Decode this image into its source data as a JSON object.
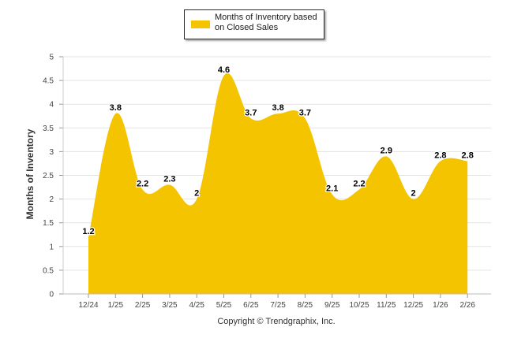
{
  "chart_data": {
    "type": "area",
    "legend": {
      "label": "Months of Inventory based\non Closed Sales",
      "position": "top-center"
    },
    "categories": [
      "12/24",
      "1/25",
      "2/25",
      "3/25",
      "4/25",
      "5/25",
      "6/25",
      "7/25",
      "8/25",
      "9/25",
      "10/25",
      "11/25",
      "12/25",
      "1/26",
      "2/26"
    ],
    "values": [
      1.2,
      3.8,
      2.2,
      2.3,
      2,
      4.6,
      3.7,
      3.8,
      3.7,
      2.1,
      2.2,
      2.9,
      2,
      2.8,
      2.8
    ],
    "data_labels": [
      "1.2",
      "3.8",
      "2.2",
      "2.3",
      "2",
      "4.6",
      "3.7",
      "3.8",
      "3.7",
      "2.1",
      "2.2",
      "2.9",
      "2",
      "2.8",
      "2.8"
    ],
    "y_ticks": [
      "0",
      "0.5",
      "1",
      "1.5",
      "2",
      "2.5",
      "3",
      "3.5",
      "4",
      "4.5",
      "5"
    ],
    "ylim": [
      0,
      5
    ],
    "ylabel": "Months of Inventory",
    "xlabel": "",
    "grid": true,
    "fill_color": "#f5c400"
  },
  "footer": {
    "copyright": "Copyright © Trendgraphix, Inc."
  }
}
